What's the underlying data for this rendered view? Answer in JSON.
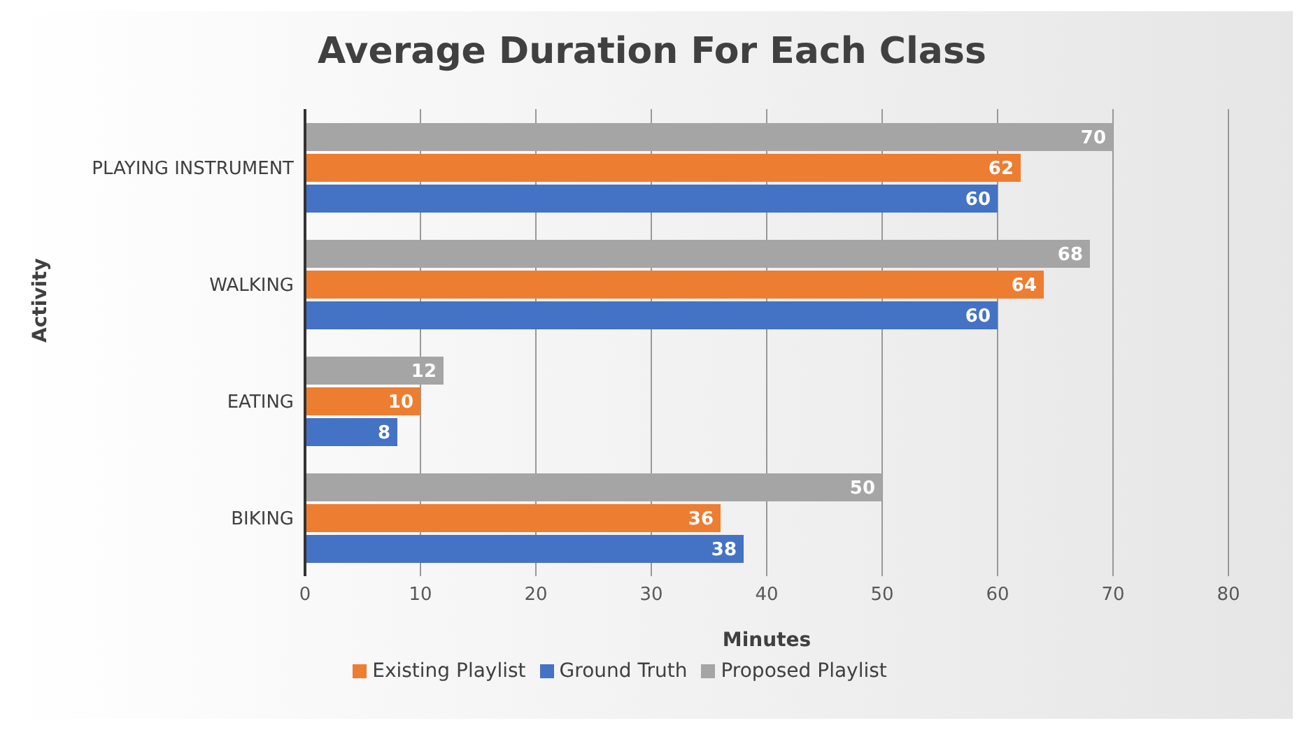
{
  "chart_data": {
    "type": "bar",
    "orientation": "horizontal",
    "title": "Average Duration For Each Class",
    "xlabel": "Minutes",
    "ylabel": "Activity",
    "categories": [
      "PLAYING INSTRUMENT",
      "WALKING",
      "EATING",
      "BIKING"
    ],
    "series": [
      {
        "name": "Proposed Playlist",
        "color": "#a5a5a5",
        "values": [
          70,
          68,
          12,
          50
        ]
      },
      {
        "name": "Existing Playlist",
        "color": "#ed7d31",
        "values": [
          62,
          64,
          10,
          36
        ]
      },
      {
        "name": "Ground Truth",
        "color": "#4472c4",
        "values": [
          60,
          60,
          8,
          38
        ]
      }
    ],
    "xlim": [
      0,
      80
    ],
    "xticks": [
      0,
      10,
      20,
      30,
      40,
      50,
      60,
      70,
      80
    ],
    "grid": "x",
    "legend": "bottom",
    "data_labels": true
  }
}
